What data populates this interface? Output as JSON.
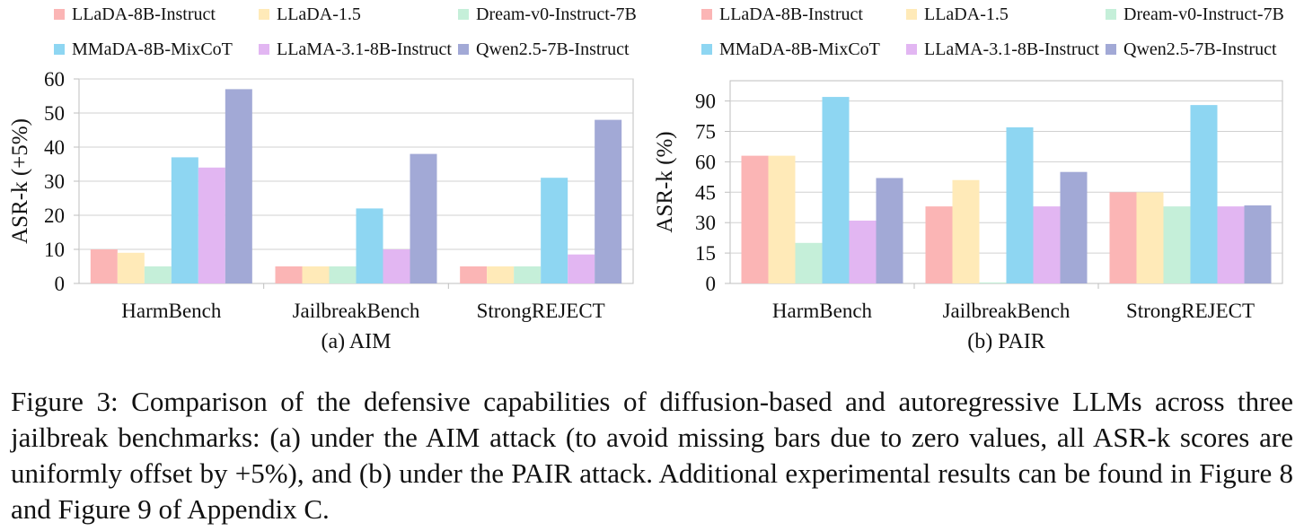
{
  "chart_data": [
    {
      "type": "bar",
      "subtitle": "(a) AIM",
      "ylabel": "ASR-k (+5%)",
      "xlabel": "",
      "ylim": [
        0,
        60
      ],
      "yticks": [
        0,
        10,
        20,
        30,
        40,
        50,
        60
      ],
      "grid": true,
      "legend_position": "top",
      "categories": [
        "HarmBench",
        "JailbreakBench",
        "StrongREJECT"
      ],
      "series": [
        {
          "name": "LLaDA-8B-Instruct",
          "color": "#FBB5B5",
          "values": [
            10,
            5,
            5
          ]
        },
        {
          "name": "LLaDA-1.5",
          "color": "#FFEAB8",
          "values": [
            9,
            5,
            5
          ]
        },
        {
          "name": "Dream-v0-Instruct-7B",
          "color": "#C5EFD9",
          "values": [
            5,
            5,
            5
          ]
        },
        {
          "name": "MMaDA-8B-MixCoT",
          "color": "#8ED6F2",
          "values": [
            37,
            22,
            31
          ]
        },
        {
          "name": "LLaMA-3.1-8B-Instruct",
          "color": "#E2B6F2",
          "values": [
            34,
            10,
            8.5
          ]
        },
        {
          "name": "Qwen2.5-7B-Instruct",
          "color": "#A2A9D6",
          "values": [
            57,
            38,
            48
          ]
        }
      ]
    },
    {
      "type": "bar",
      "subtitle": "(b) PAIR",
      "ylabel": "ASR-k (%)",
      "xlabel": "",
      "ylim": [
        0,
        100
      ],
      "yticks": [
        0,
        15,
        30,
        45,
        60,
        75,
        90
      ],
      "grid": true,
      "legend_position": "top",
      "categories": [
        "HarmBench",
        "JailbreakBench",
        "StrongREJECT"
      ],
      "series": [
        {
          "name": "LLaDA-8B-Instruct",
          "color": "#FBB5B5",
          "values": [
            63,
            38,
            45
          ]
        },
        {
          "name": "LLaDA-1.5",
          "color": "#FFEAB8",
          "values": [
            63,
            51,
            45
          ]
        },
        {
          "name": "Dream-v0-Instruct-7B",
          "color": "#C5EFD9",
          "values": [
            20,
            0.5,
            38
          ]
        },
        {
          "name": "MMaDA-8B-MixCoT",
          "color": "#8ED6F2",
          "values": [
            92,
            77,
            88
          ]
        },
        {
          "name": "LLaMA-3.1-8B-Instruct",
          "color": "#E2B6F2",
          "values": [
            31,
            38,
            38
          ]
        },
        {
          "name": "Qwen2.5-7B-Instruct",
          "color": "#A2A9D6",
          "values": [
            52,
            55,
            38.5
          ]
        }
      ]
    }
  ],
  "caption": {
    "label": "Figure 3:",
    "text": "Comparison of the defensive capabilities of diffusion-based and autoregressive LLMs across three jailbreak benchmarks: (a) under the AIM attack (to avoid missing bars due to zero values, all ASR-k scores are uniformly offset by +5%), and (b) under the PAIR attack. Additional experimental results can be found in Figure 8 and Figure 9 of Appendix C."
  }
}
